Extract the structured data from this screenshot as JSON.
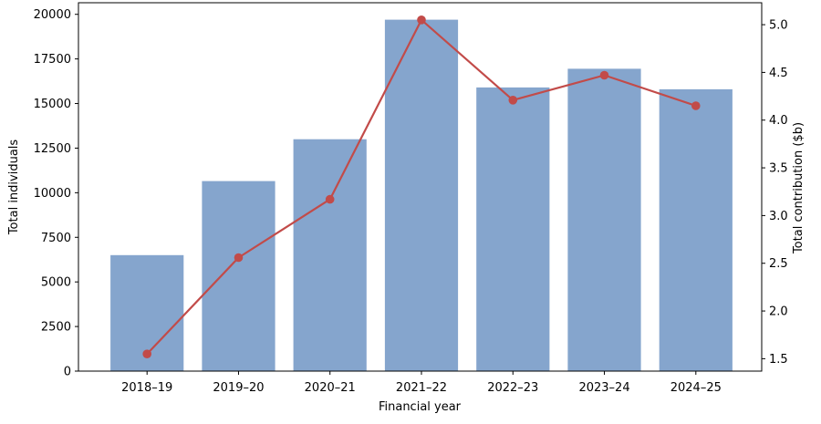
{
  "chart_data": {
    "type": "combo",
    "categories": [
      "2018–19",
      "2019–20",
      "2020–21",
      "2021–22",
      "2022–23",
      "2023–24",
      "2024–25"
    ],
    "series": [
      {
        "name": "Total individuals",
        "type": "bar",
        "axis": "left",
        "color": "#85a5cd",
        "values": [
          6500,
          10650,
          13000,
          19700,
          15900,
          16950,
          15800
        ]
      },
      {
        "name": "Total contribution ($b)",
        "type": "line",
        "axis": "right",
        "color": "#c24b49",
        "marker": "circle",
        "values": [
          1.55,
          2.56,
          3.17,
          5.05,
          4.21,
          4.47,
          4.15
        ]
      }
    ],
    "title": "",
    "xlabel": "Financial year",
    "ylabel_left": "Total individuals",
    "ylabel_right": "Total contribution ($b)",
    "xlim": [
      -0.75,
      6.72
    ],
    "ylim_left": [
      0,
      20650
    ],
    "ylim_right": [
      1.37,
      5.23
    ],
    "yticks_left": [
      0,
      2500,
      5000,
      7500,
      10000,
      12500,
      15000,
      17500,
      20000
    ],
    "yticks_right": [
      1.5,
      2.0,
      2.5,
      3.0,
      3.5,
      4.0,
      4.5,
      5.0
    ],
    "grid": false,
    "legend": "none",
    "bar_width_fraction": 0.8,
    "spine_color": "#000000",
    "background_color": "#ffffff"
  }
}
